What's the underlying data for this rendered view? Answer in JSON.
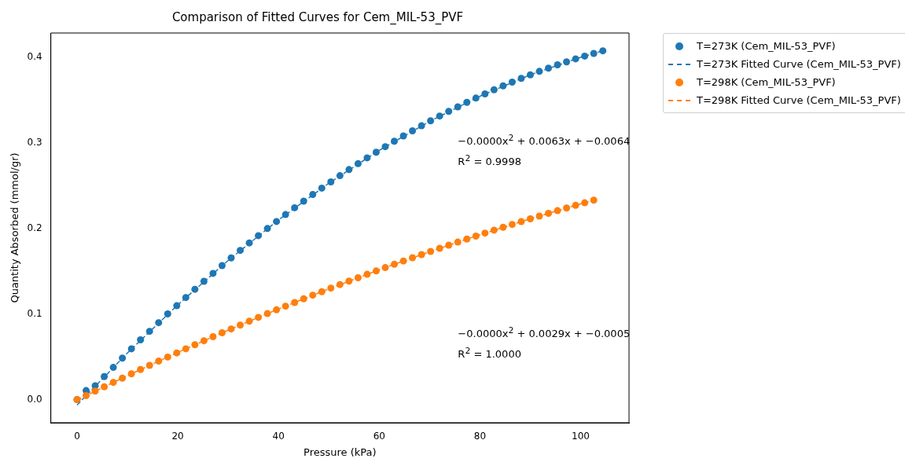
{
  "chart_data": {
    "type": "scatter",
    "title": "Comparison of Fitted Curves for Cem_MIL-53_PVF",
    "xlabel": "Pressure (kPa)",
    "ylabel": "Quantity Absorbed (mmol/gr)",
    "xlim": [
      -5.2,
      109.6
    ],
    "xticks": [
      0,
      20,
      40,
      60,
      80,
      100
    ],
    "ylim": [
      -0.027,
      0.428
    ],
    "yticks": [
      {
        "value": 0,
        "label": "0.0"
      },
      0.1,
      0.2,
      0.3,
      0.4
    ],
    "grid": false,
    "legend": "top right",
    "marker": "circle",
    "series": [
      {
        "name": "T=273K (Cem_MIL-53_PVF)",
        "type": "scatter",
        "color": "#1f77b4",
        "x": [
          0,
          1.8,
          3.6,
          5.4,
          7.2,
          9,
          10.8,
          12.6,
          14.4,
          16.2,
          18,
          19.8,
          21.6,
          23.4,
          25.2,
          27,
          28.8,
          30.6,
          32.4,
          34.2,
          36,
          37.8,
          39.6,
          41.4,
          43.2,
          45,
          46.8,
          48.6,
          50.4,
          52.2,
          54,
          55.8,
          57.6,
          59.4,
          61.2,
          63,
          64.8,
          66.6,
          68.4,
          70.2,
          72,
          73.8,
          75.6,
          77.4,
          79.2,
          81,
          82.8,
          84.6,
          86.4,
          88.2,
          90,
          91.8,
          93.6,
          95.4,
          97.2,
          99,
          100.8,
          102.6,
          104.4
        ],
        "values": [
          0,
          0.0105,
          0.0161,
          0.0269,
          0.0376,
          0.0485,
          0.0593,
          0.0698,
          0.0797,
          0.0898,
          0.1,
          0.1096,
          0.1192,
          0.1288,
          0.1381,
          0.1474,
          0.1565,
          0.1654,
          0.1742,
          0.1829,
          0.1914,
          0.1997,
          0.2079,
          0.216,
          0.224,
          0.2317,
          0.2394,
          0.2469,
          0.2542,
          0.2614,
          0.2685,
          0.2754,
          0.2822,
          0.2888,
          0.2953,
          0.3016,
          0.3078,
          0.3138,
          0.3197,
          0.3255,
          0.3311,
          0.3365,
          0.3418,
          0.347,
          0.352,
          0.3569,
          0.3617,
          0.3663,
          0.3707,
          0.375,
          0.3792,
          0.3832,
          0.387,
          0.3908,
          0.3943,
          0.3978,
          0.401,
          0.4042,
          0.4072
        ]
      },
      {
        "name": "T=273K Fitted Curve (Cem_MIL-53_PVF)",
        "type": "line",
        "line_style": "dashed",
        "marker": "none",
        "color": "#1f77b4",
        "x": [
          0,
          10,
          20,
          30,
          40,
          50,
          60,
          70,
          80,
          90,
          100,
          104.4
        ],
        "values": [
          -0.0064,
          0.0544,
          0.1106,
          0.1624,
          0.2098,
          0.2526,
          0.291,
          0.3248,
          0.3542,
          0.3792,
          0.3996,
          0.4072
        ]
      },
      {
        "name": "T=298K (Cem_MIL-53_PVF)",
        "type": "scatter",
        "color": "#ff7f0e",
        "x": [
          0,
          1.8,
          3.6,
          5.4,
          7.2,
          9,
          10.8,
          12.6,
          14.4,
          16.2,
          18,
          19.8,
          21.6,
          23.4,
          25.2,
          27,
          28.8,
          30.6,
          32.4,
          34.2,
          36,
          37.8,
          39.6,
          41.4,
          43.2,
          45,
          46.8,
          48.6,
          50.4,
          52.2,
          54,
          55.8,
          57.6,
          59.4,
          61.2,
          63,
          64.8,
          66.6,
          68.4,
          70.2,
          72,
          73.8,
          75.6,
          77.4,
          79.2,
          81,
          82.8,
          84.6,
          86.4,
          88.2,
          90,
          91.8,
          93.6,
          95.4,
          97.2,
          99,
          100.8,
          102.6
        ],
        "values": [
          0,
          0.0047,
          0.0099,
          0.015,
          0.0201,
          0.0251,
          0.0301,
          0.0351,
          0.04,
          0.0449,
          0.0497,
          0.0545,
          0.0593,
          0.064,
          0.0687,
          0.0734,
          0.078,
          0.0825,
          0.087,
          0.0915,
          0.096,
          0.1004,
          0.1048,
          0.1091,
          0.1134,
          0.1177,
          0.1219,
          0.126,
          0.1302,
          0.1343,
          0.1383,
          0.1423,
          0.1463,
          0.1502,
          0.1541,
          0.158,
          0.1618,
          0.1656,
          0.1693,
          0.173,
          0.1767,
          0.1803,
          0.1839,
          0.1874,
          0.1909,
          0.1944,
          0.1978,
          0.2012,
          0.2045,
          0.2078,
          0.2111,
          0.2143,
          0.2175,
          0.2206,
          0.2237,
          0.2268,
          0.2298,
          0.2328
        ]
      },
      {
        "name": "T=298K Fitted Curve (Cem_MIL-53_PVF)",
        "type": "line",
        "line_style": "dashed",
        "marker": "none",
        "color": "#ff7f0e",
        "x": [
          0,
          10,
          20,
          30,
          40,
          50,
          60,
          70,
          80,
          90,
          100,
          102.6
        ],
        "values": [
          -0.0005,
          0.0279,
          0.0551,
          0.081,
          0.1058,
          0.1293,
          0.1516,
          0.1726,
          0.1925,
          0.2111,
          0.2285,
          0.2328
        ]
      }
    ],
    "annotations": [
      "−0.0000x$^{2}$ + 0.0063x + −0.0064",
      "R$^{2}$ = 0.9998",
      "−0.0000x$^{2}$ + 0.0029x + −0.0005",
      "R$^{2}$ = 1.0000"
    ]
  }
}
